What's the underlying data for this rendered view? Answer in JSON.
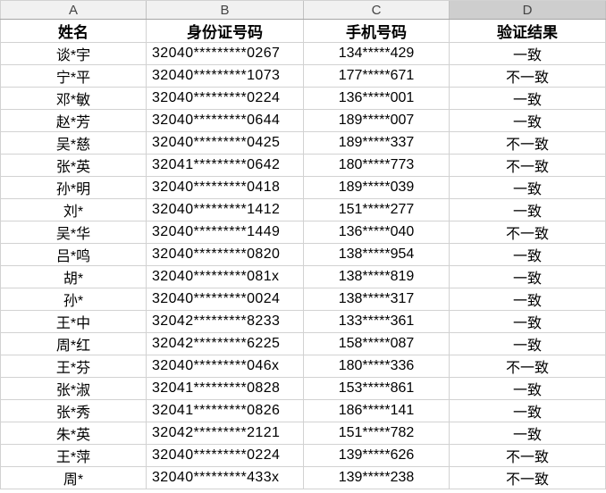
{
  "columns": [
    {
      "label": "A",
      "selected": false
    },
    {
      "label": "B",
      "selected": false
    },
    {
      "label": "C",
      "selected": false
    },
    {
      "label": "D",
      "selected": true
    }
  ],
  "header_row": {
    "name": "姓名",
    "id_number": "身份证号码",
    "phone": "手机号码",
    "result": "验证结果"
  },
  "rows": [
    {
      "name": "谈*宇",
      "id_number": "32040*********0267",
      "phone": "134*****429",
      "result": "一致"
    },
    {
      "name": "宁*平",
      "id_number": "32040*********1073",
      "phone": "177*****671",
      "result": "不一致"
    },
    {
      "name": "邓*敏",
      "id_number": "32040*********0224",
      "phone": "136*****001",
      "result": "一致"
    },
    {
      "name": "赵*芳",
      "id_number": "32040*********0644",
      "phone": "189*****007",
      "result": "一致"
    },
    {
      "name": "吴*慈",
      "id_number": "32040*********0425",
      "phone": "189*****337",
      "result": "不一致"
    },
    {
      "name": "张*英",
      "id_number": "32041*********0642",
      "phone": "180*****773",
      "result": "不一致"
    },
    {
      "name": "孙*明",
      "id_number": "32040*********0418",
      "phone": "189*****039",
      "result": "一致"
    },
    {
      "name": "刘*",
      "id_number": "32040*********1412",
      "phone": "151*****277",
      "result": "一致"
    },
    {
      "name": "吴*华",
      "id_number": "32040*********1449",
      "phone": "136*****040",
      "result": "不一致"
    },
    {
      "name": "吕*鸣",
      "id_number": "32040*********0820",
      "phone": "138*****954",
      "result": "一致"
    },
    {
      "name": "胡*",
      "id_number": "32040*********081x",
      "phone": "138*****819",
      "result": "一致"
    },
    {
      "name": "孙*",
      "id_number": "32040*********0024",
      "phone": "138*****317",
      "result": "一致"
    },
    {
      "name": "王*中",
      "id_number": "32042*********8233",
      "phone": "133*****361",
      "result": "一致"
    },
    {
      "name": "周*红",
      "id_number": "32042*********6225",
      "phone": "158*****087",
      "result": "一致"
    },
    {
      "name": "王*芬",
      "id_number": "32040*********046x",
      "phone": "180*****336",
      "result": "不一致"
    },
    {
      "name": "张*淑",
      "id_number": "32041*********0828",
      "phone": "153*****861",
      "result": "一致"
    },
    {
      "name": "张*秀",
      "id_number": "32041*********0826",
      "phone": "186*****141",
      "result": "一致"
    },
    {
      "name": "朱*英",
      "id_number": "32042*********2121",
      "phone": "151*****782",
      "result": "一致"
    },
    {
      "name": "王*萍",
      "id_number": "32040*********0224",
      "phone": "139*****626",
      "result": "不一致"
    },
    {
      "name": "周*",
      "id_number": "32040*********433x",
      "phone": "139*****238",
      "result": "不一致"
    }
  ],
  "colors": {
    "grid_line": "#d2d2d2",
    "column_header_bg": "#f1f1f1",
    "column_header_selected_bg": "#cecece",
    "column_header_bottom_border": "#a6a6a6",
    "column_header_text": "#444444",
    "cell_bg": "#ffffff",
    "text": "#000000"
  }
}
